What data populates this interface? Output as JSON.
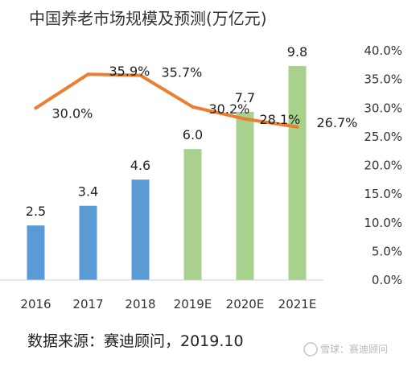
{
  "chart_data": {
    "type": "bar",
    "title": "中国养老市场规模及预测(万亿元)",
    "categories": [
      "2016",
      "2017",
      "2018",
      "2019E",
      "2020E",
      "2021E"
    ],
    "series": [
      {
        "type": "bar",
        "values": [
          2.5,
          3.4,
          4.6,
          6.0,
          7.7,
          9.8
        ],
        "labels": [
          "2.5",
          "3.4",
          "4.6",
          "6.0",
          "7.7",
          "9.8"
        ],
        "colors": [
          "#5b9bd5",
          "#5b9bd5",
          "#5b9bd5",
          "#a9d18e",
          "#a9d18e",
          "#a9d18e"
        ],
        "axis": "left"
      },
      {
        "type": "line",
        "values": [
          30.0,
          35.9,
          35.7,
          30.2,
          28.1,
          26.7
        ],
        "labels": [
          "30.0%",
          "35.9%",
          "35.7%",
          "30.2%",
          "28.1%",
          "26.7%"
        ],
        "color": "#ed7d31",
        "axis": "right"
      }
    ],
    "y_left_range": [
      0,
      10.5
    ],
    "y_right_range": [
      0,
      40
    ],
    "y_right_ticks": [
      "0.0%",
      "5.0%",
      "10.0%",
      "15.0%",
      "20.0%",
      "25.0%",
      "30.0%",
      "35.0%",
      "40.0%"
    ],
    "grid": false,
    "source": "数据来源：赛迪顾问，2019.10",
    "watermark": "雪球：赛迪顾问"
  }
}
